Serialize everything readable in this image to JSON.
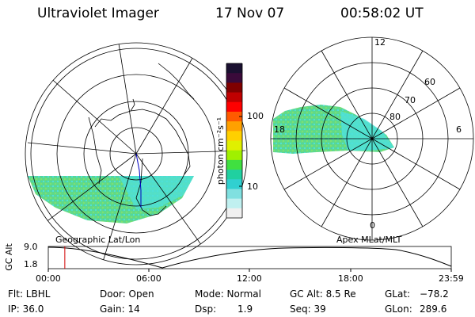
{
  "header": {
    "title": "Ultraviolet Imager",
    "date": "17 Nov 07",
    "time": "00:58:02 UT"
  },
  "colorbar": {
    "label": "photon cm⁻²s⁻¹",
    "ticks": [
      "100",
      "10"
    ],
    "colors": [
      "#1a1030",
      "#3a0a3a",
      "#800000",
      "#c00000",
      "#ff0000",
      "#ff5a00",
      "#ffa000",
      "#ffd000",
      "#e0f000",
      "#a0f000",
      "#40e040",
      "#20d0a0",
      "#30d0d0",
      "#80e0e0",
      "#c0f0f0",
      "#f0f0f0"
    ]
  },
  "left_map": {
    "caption": "Geographic Lat/Lon"
  },
  "right_map": {
    "caption": "Apex MLat/MLT",
    "mlt_labels": [
      "12",
      "18",
      "6",
      "0"
    ],
    "lat_labels": [
      "60",
      "70",
      "80"
    ]
  },
  "altitude_plot": {
    "ylabel": "GC Alt",
    "yticks": [
      "9.0",
      "1.8"
    ],
    "xticks": [
      "00:00",
      "06:00",
      "12:00",
      "18:00",
      "23:59"
    ],
    "marker_time_fraction": 0.041
  },
  "info": {
    "row1": {
      "flt": "Flt: LBHL",
      "door": "Door: Open",
      "mode": "Mode: Normal",
      "gcalt": "GC Alt: 8.5 Re",
      "glat_label": "GLat:",
      "glat_value": "−78.2"
    },
    "row2": {
      "ip": "IP: 36.0",
      "gain": "Gain: 14",
      "dsp_label": "Dsp:",
      "dsp_value": "1.9",
      "seq": "Seq: 39",
      "glon_label": "GLon:",
      "glon_value": "289.6"
    }
  },
  "colors": {
    "aurora_green": "#5fd98a",
    "aurora_cyan": "#4fe0d8",
    "marker_red": "#d00000"
  }
}
